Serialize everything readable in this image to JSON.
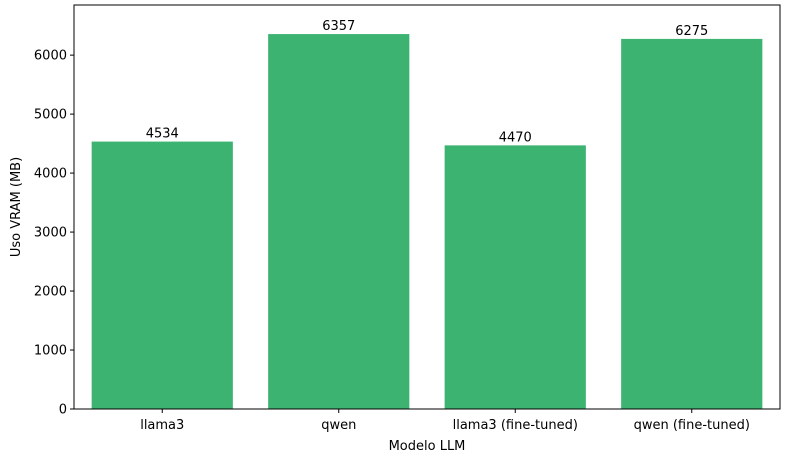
{
  "chart_data": {
    "type": "bar",
    "categories": [
      "llama3",
      "qwen",
      "llama3 (fine-tuned)",
      "qwen (fine-tuned)"
    ],
    "values": [
      4534,
      6357,
      4470,
      6275
    ],
    "data_labels": [
      "4534",
      "6357",
      "4470",
      "6275"
    ],
    "xlabel": "Modelo LLM",
    "ylabel": "Uso VRAM (MB)",
    "ylim": [
      0,
      6850
    ],
    "yticks": [
      0,
      1000,
      2000,
      3000,
      4000,
      5000,
      6000
    ],
    "ytick_labels": [
      "0",
      "1000",
      "2000",
      "3000",
      "4000",
      "5000",
      "6000"
    ],
    "bar_color": "#3cb371",
    "grid": false,
    "legend": "none"
  }
}
